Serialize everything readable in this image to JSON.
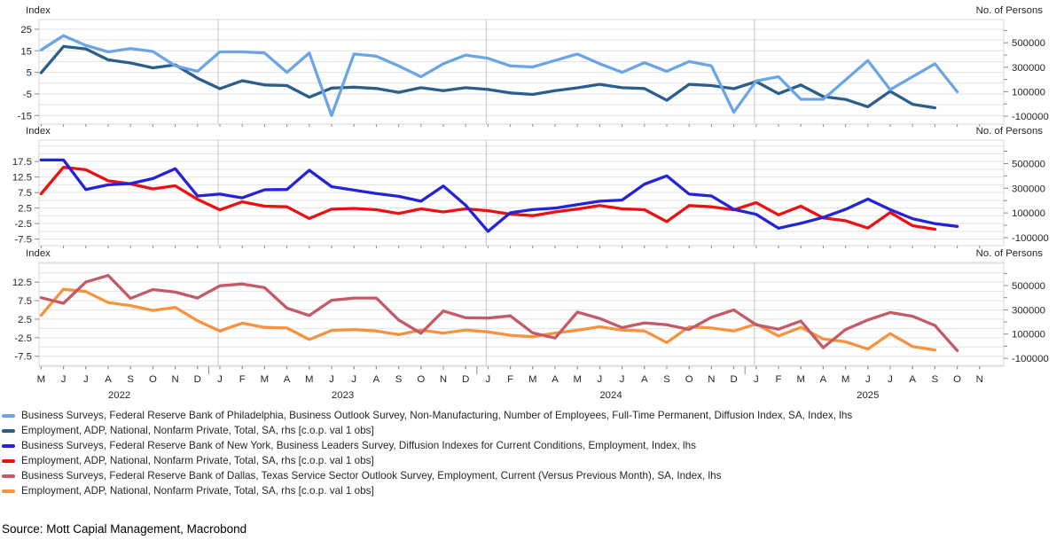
{
  "chart_data": [
    {
      "type": "line",
      "panel": 1,
      "first_month": "May 2022",
      "left_axis": {
        "title": "Index",
        "ticks": [
          25,
          15,
          5,
          -5,
          -15
        ],
        "grid_values": [
          25,
          20,
          15,
          10,
          5,
          0,
          -5,
          -10,
          -15
        ],
        "range": [
          -19,
          29.5
        ]
      },
      "right_axis": {
        "title": "No. of Persons",
        "ticks": [
          500000,
          300000,
          100000,
          -100000
        ],
        "minor_ticks": [
          600000,
          400000,
          200000,
          0
        ],
        "range": [
          -165000,
          690000
        ]
      },
      "series": [
        {
          "name": "Business Surveys, Federal Reserve Bank of Philadelphia, Business Outlook Survey, Non-Manufacturing, Number of Employees, Full-Time Permanent, Diffusion Index, SA, Index, lhs",
          "color": "#6BA5E7",
          "axis": "left",
          "values": [
            15.4,
            22,
            17.5,
            14.5,
            16,
            14.7,
            8,
            5.5,
            14.5,
            14.5,
            14,
            5,
            14,
            -15,
            13.5,
            12.5,
            8,
            3,
            9,
            13,
            11.5,
            8,
            7.5,
            10.5,
            13.5,
            9,
            5,
            9.5,
            5.5,
            10,
            8,
            -13.5,
            1,
            3,
            -7.5,
            -7.5,
            1.5,
            10.5,
            -3,
            3,
            9,
            -4
          ]
        },
        {
          "name": "Employment, ADP, National, Nonfarm Private, Total, SA, rhs [c.o.p. val 1 obs]",
          "color": "#2A5E8C",
          "axis": "right",
          "values": [
            255000,
            470000,
            450000,
            360000,
            335000,
            295000,
            320000,
            210000,
            125000,
            190000,
            155000,
            150000,
            55000,
            130000,
            137000,
            126000,
            95000,
            133000,
            108000,
            133000,
            118000,
            90000,
            78000,
            108000,
            132000,
            160000,
            133000,
            126000,
            30000,
            160000,
            150000,
            125000,
            183000,
            84000,
            155000,
            60000,
            37000,
            -23000,
            104000,
            -3000,
            -32000
          ]
        }
      ]
    },
    {
      "type": "line",
      "panel": 2,
      "first_month": "May 2022",
      "left_axis": {
        "title": "Index",
        "ticks": [
          17.5,
          12.5,
          7.5,
          2.5,
          -2.5,
          -7.5
        ],
        "grid_values": [
          22.5,
          20,
          17.5,
          15,
          12.5,
          10,
          7.5,
          5,
          2.5,
          0,
          -2.5,
          -5,
          -7.5
        ],
        "range": [
          -9.6,
          24.4
        ]
      },
      "right_axis": {
        "title": "No. of Persons",
        "ticks": [
          500000,
          300000,
          100000,
          -100000
        ],
        "minor_ticks": [
          600000,
          400000,
          200000,
          0
        ],
        "range": [
          -165000,
          690000
        ]
      },
      "series": [
        {
          "name": "Business Surveys, Federal Reserve Bank of New York, Business Leaders Survey, Diffusion Indexes for Current Conditions, Employment, Index, lhs",
          "color": "#2323D9",
          "axis": "left",
          "values": [
            18,
            18,
            8.5,
            10,
            10.4,
            12,
            15.2,
            6.4,
            7,
            5.8,
            8.4,
            8.5,
            14.7,
            9.4,
            8.3,
            7.2,
            6.3,
            4.7,
            9.6,
            3.4,
            -5,
            1,
            2,
            2.5,
            3.6,
            4.7,
            5.1,
            10.2,
            12.9,
            7,
            6.4,
            2.1,
            0.5,
            -4,
            -2.4,
            -0.5,
            2.1,
            5.4,
            2,
            -0.9,
            -2.5,
            -3.4
          ]
        },
        {
          "name": "Employment, ADP, National, Nonfarm Private, Total, SA, rhs [c.o.p. val 1 obs]",
          "color": "#EE1010",
          "axis": "right",
          "values": [
            255000,
            470000,
            450000,
            360000,
            335000,
            295000,
            320000,
            210000,
            125000,
            190000,
            155000,
            150000,
            55000,
            130000,
            137000,
            126000,
            95000,
            133000,
            108000,
            133000,
            118000,
            90000,
            78000,
            108000,
            132000,
            160000,
            133000,
            126000,
            30000,
            160000,
            150000,
            125000,
            183000,
            84000,
            155000,
            60000,
            37000,
            -23000,
            104000,
            -3000,
            -32000
          ]
        }
      ]
    },
    {
      "type": "line",
      "panel": 3,
      "first_month": "May 2022",
      "left_axis": {
        "title": "Index",
        "ticks": [
          12.5,
          7.5,
          2.5,
          -2.5,
          -7.5
        ],
        "grid_values": [
          17.5,
          15,
          12.5,
          10,
          7.5,
          5,
          2.5,
          0,
          -2.5,
          -5,
          -7.5,
          -10
        ],
        "range": [
          -10.2,
          17.8
        ]
      },
      "right_axis": {
        "title": "No. of Persons",
        "ticks": [
          500000,
          300000,
          100000,
          -100000
        ],
        "minor_ticks": [
          600000,
          400000,
          200000,
          0
        ],
        "range": [
          -165000,
          690000
        ]
      },
      "series": [
        {
          "name": "Business Surveys, Federal Reserve Bank of Dallas, Texas Service Sector Outlook Survey, Employment, Current (Versus Previous Month), SA, Index, lhs",
          "color": "#C45A66",
          "axis": "left",
          "values": [
            8.3,
            6.8,
            12.5,
            14.3,
            8.1,
            10.5,
            9.8,
            8.2,
            11.5,
            12,
            11,
            5.5,
            3.5,
            7.6,
            8.2,
            8.2,
            2.3,
            -1.3,
            4.7,
            2.9,
            2.8,
            3.4,
            -1.2,
            -2.6,
            4.4,
            2.7,
            0.2,
            1.5,
            1,
            -0.3,
            3,
            5,
            1,
            -0.2,
            2,
            -5.2,
            -0.3,
            2.3,
            4.3,
            3.3,
            0.8,
            -6
          ]
        },
        {
          "name": "Employment, ADP, National, Nonfarm Private, Total, SA, rhs [c.o.p. val 1 obs]",
          "color": "#F7923E",
          "axis": "right",
          "values": [
            255000,
            470000,
            450000,
            360000,
            335000,
            295000,
            320000,
            210000,
            125000,
            190000,
            155000,
            150000,
            55000,
            130000,
            137000,
            126000,
            95000,
            133000,
            108000,
            133000,
            118000,
            90000,
            78000,
            108000,
            132000,
            160000,
            133000,
            126000,
            30000,
            160000,
            150000,
            125000,
            183000,
            84000,
            155000,
            60000,
            37000,
            -23000,
            104000,
            -3000,
            -32000
          ]
        }
      ]
    }
  ],
  "x_axis": {
    "month_labels": [
      "M",
      "J",
      "J",
      "A",
      "S",
      "O",
      "N",
      "D",
      "J",
      "F",
      "M",
      "A",
      "M",
      "J",
      "J",
      "A",
      "S",
      "O",
      "N",
      "D",
      "J",
      "F",
      "M",
      "A",
      "M",
      "J",
      "J",
      "A",
      "S",
      "O",
      "N",
      "D",
      "J",
      "F",
      "M",
      "A",
      "M",
      "J",
      "J",
      "A",
      "S",
      "O",
      "N"
    ],
    "years": [
      {
        "label": "2022",
        "start_index": 0,
        "end_index": 7
      },
      {
        "label": "2023",
        "start_index": 8,
        "end_index": 19
      },
      {
        "label": "2024",
        "start_index": 20,
        "end_index": 31
      },
      {
        "label": "2025",
        "start_index": 32,
        "end_index": 42
      }
    ],
    "year_separator_indices": [
      8,
      20,
      32
    ]
  },
  "legend": {
    "items": [
      {
        "label": "Business Surveys, Federal Reserve Bank of Philadelphia, Business Outlook Survey, Non-Manufacturing, Number of Employees, Full-Time Permanent, Diffusion Index, SA, Index, lhs",
        "color": "#6BA5E7"
      },
      {
        "label": "Employment, ADP, National, Nonfarm Private, Total, SA, rhs [c.o.p. val 1 obs]",
        "color": "#2A5E8C"
      },
      {
        "label": "Business Surveys, Federal Reserve Bank of New York, Business Leaders Survey, Diffusion Indexes for Current Conditions, Employment, Index, lhs",
        "color": "#2323D9"
      },
      {
        "label": "Employment, ADP, National, Nonfarm Private, Total, SA, rhs [c.o.p. val 1 obs]",
        "color": "#EE1010"
      },
      {
        "label": "Business Surveys, Federal Reserve Bank of Dallas, Texas Service Sector Outlook Survey, Employment, Current (Versus Previous Month), SA, Index, lhs",
        "color": "#C45A66"
      },
      {
        "label": "Employment, ADP, National, Nonfarm Private, Total, SA, rhs [c.o.p. val 1 obs]",
        "color": "#F7923E"
      }
    ]
  },
  "source": "Source: Mott Capial Management, Macrobond",
  "theme": {
    "grid": "#E2E2E2",
    "year_line": "#C4C4C4",
    "border": "#D7D7D7",
    "tick": "#8C8C8C",
    "text": "#262626"
  }
}
